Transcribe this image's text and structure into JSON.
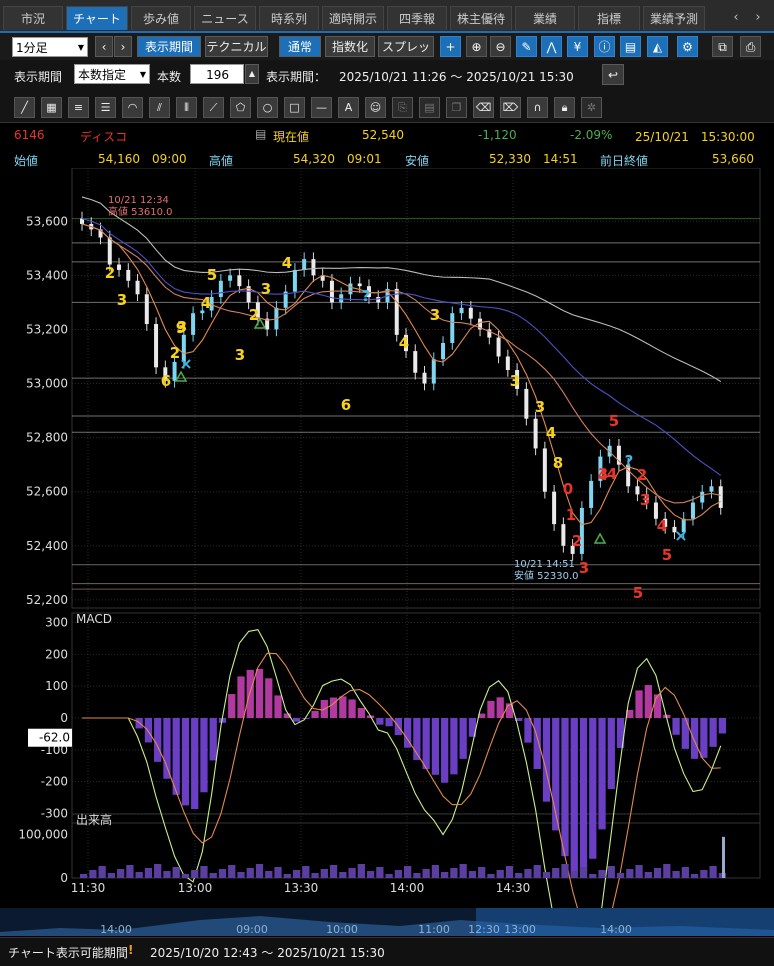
{
  "tabs": [
    "市況",
    "チャート",
    "歩み値",
    "ニュース",
    "時系列",
    "適時開示",
    "四季報",
    "株主優待",
    "業績",
    "指標",
    "業績予測"
  ],
  "tab_active": 1,
  "toolbar": {
    "interval": "1分足",
    "period_btn": "表示期間",
    "technical_btn": "テクニカル",
    "normal_btn": "通常",
    "index_btn": "指数化",
    "spread_btn": "スプレッド"
  },
  "period": {
    "label": "表示期間",
    "mode": "本数指定",
    "count_label": "本数",
    "count": "196",
    "range_label": "表示期間：",
    "range": "2025/10/21 11:26 ～ 2025/10/21 15:30"
  },
  "quote": {
    "code": "6146",
    "name": "ディスコ",
    "current_label": "現在値",
    "current": "52,540",
    "change": "-1,120",
    "change_pct": "-2.09%",
    "time": "25/10/21　15:30:00",
    "open_label": "始値",
    "open": "54,160",
    "open_time": "09:00",
    "high_label": "高値",
    "high": "54,320",
    "high_time": "09:01",
    "low_label": "安値",
    "low": "52,330",
    "low_time": "14:51",
    "prev_label": "前日終値",
    "prev": "53,660"
  },
  "chart_data": [
    {
      "type": "candlestick",
      "title": "",
      "y_ticks": [
        53600,
        53400,
        53200,
        53000,
        52800,
        52600,
        52400,
        52200
      ],
      "ylim": [
        52170,
        53760
      ],
      "x_ticks": [
        "11:30",
        "13:00",
        "13:30",
        "14:00",
        "14:30"
      ],
      "overlays": [
        "moving averages",
        "Bollinger / support lines",
        "TD sequential counts"
      ],
      "annotations": [
        {
          "label": "10/21 12:34",
          "value": "高値 53610.0"
        },
        {
          "label": "10/21 14:51",
          "value": "安値 52330.0"
        }
      ],
      "series": [
        {
          "values": [
            53590,
            53570,
            53540,
            53440,
            53420,
            53380,
            53330,
            53220,
            53060,
            53010,
            53080,
            53180,
            53260,
            53270,
            53320,
            53380,
            53400,
            53360,
            53300,
            53240,
            53200,
            53280,
            53340,
            53420,
            53460,
            53400,
            53380,
            53300,
            53330,
            53370,
            53360,
            53320,
            53300,
            53350,
            53180,
            53120,
            53040,
            53000,
            53090,
            53150,
            53260,
            53280,
            53240,
            53200,
            53170,
            53100,
            53050,
            52980,
            52870,
            52760,
            52600,
            52480,
            52400,
            52370,
            52540,
            52640,
            52730,
            52770,
            52700,
            52620,
            52590,
            52560,
            52500,
            52470,
            52450,
            52500,
            52560,
            52600,
            52620,
            52540
          ]
        }
      ],
      "price_labels": {
        "yellow": [
          "2",
          "3",
          "6",
          "2",
          "3",
          "5",
          "4",
          "3",
          "2",
          "3",
          "4",
          "3",
          "6",
          "4",
          "3",
          "3",
          "4",
          "8",
          "9"
        ],
        "red": [
          "0",
          "1",
          "2",
          "3",
          "4",
          "5",
          "4",
          "3",
          "5",
          "2",
          "3",
          "4",
          "5"
        ]
      }
    },
    {
      "type": "line",
      "title": "MACD",
      "y_ticks": [
        300,
        200,
        100,
        0,
        -100,
        -200,
        -300
      ],
      "ylim": [
        -330,
        330
      ],
      "current": "-62.0"
    },
    {
      "type": "bar",
      "title": "出来高",
      "y_ticks": [
        100000,
        0
      ],
      "ylim": [
        0,
        120000
      ]
    }
  ],
  "scroller": {
    "ticks": [
      "14:00",
      "09:00",
      "10:00",
      "11:00",
      "12:30",
      "13:00",
      "14:00"
    ]
  },
  "footer": {
    "label": "チャート表示可能期間",
    "range": "2025/10/20 12:43 ～ 2025/10/21 15:30"
  },
  "colors": {
    "accent": "#1d6fb8",
    "up": "#7fd6f0",
    "down": "#eaeaea",
    "red": "#e8352c",
    "yellow": "#f6d21b",
    "green": "#4caf50"
  }
}
